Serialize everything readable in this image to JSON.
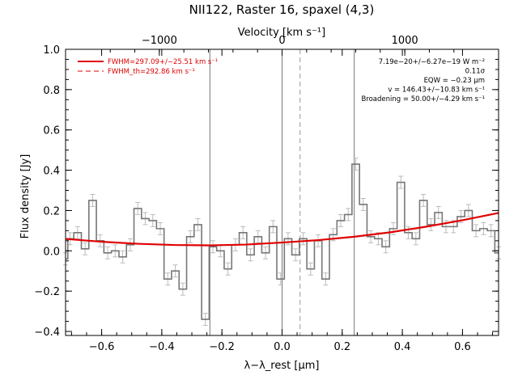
{
  "chart_data": {
    "type": "line",
    "title": "NII122, Raster 16, spaxel (4,3)",
    "top_axis_label": "Velocity [km s⁻¹]",
    "top_ticks": [
      -1000,
      0,
      1000
    ],
    "xlabel": "λ−λ_rest [μm]",
    "ylabel": "Flux density [Jy]",
    "xlim": [
      -0.72,
      0.72
    ],
    "ylim": [
      -0.42,
      1.0
    ],
    "x_ticks": [
      -0.6,
      -0.4,
      -0.2,
      0.0,
      0.2,
      0.4,
      0.6
    ],
    "y_ticks": [
      -0.4,
      -0.2,
      0.0,
      0.2,
      0.4,
      0.6,
      0.8,
      1.0
    ],
    "velocity_per_micron": 2450,
    "legend": {
      "placement": "top-left",
      "entries": [
        {
          "label": "FWHM=297.09+/−25.51 km s⁻¹",
          "style": "solid",
          "color": "#e00000"
        },
        {
          "label": "FWHM_th=292.86 km s⁻¹",
          "style": "dashed",
          "color": "#e00000"
        }
      ]
    },
    "annotations": [
      "7.19e−20+/−6.27e−19 W m⁻²",
      "0.11σ",
      "EQW = −0.23 μm",
      "v = 146.43+/−10.83 km s⁻¹",
      "Broadening = 50.00+/−4.29 km s⁻¹"
    ],
    "vertical_lines": [
      {
        "x": -0.24,
        "style": "solid",
        "color": "#777777"
      },
      {
        "x": 0.0,
        "style": "solid",
        "color": "#777777"
      },
      {
        "x": 0.06,
        "style": "dashed",
        "color": "#999999"
      },
      {
        "x": 0.24,
        "style": "solid",
        "color": "#777777"
      }
    ],
    "series": [
      {
        "role": "spectrum",
        "style": "steps",
        "color": "#777777",
        "error_color": "#bbbbbb",
        "x": [
          -0.72,
          -0.705,
          -0.68,
          -0.655,
          -0.63,
          -0.605,
          -0.58,
          -0.555,
          -0.53,
          -0.505,
          -0.48,
          -0.455,
          -0.43,
          -0.405,
          -0.38,
          -0.355,
          -0.33,
          -0.305,
          -0.28,
          -0.255,
          -0.23,
          -0.205,
          -0.18,
          -0.155,
          -0.13,
          -0.105,
          -0.08,
          -0.055,
          -0.03,
          -0.005,
          0.02,
          0.045,
          0.07,
          0.095,
          0.12,
          0.145,
          0.17,
          0.195,
          0.22,
          0.245,
          0.27,
          0.295,
          0.32,
          0.345,
          0.37,
          0.395,
          0.42,
          0.445,
          0.47,
          0.495,
          0.52,
          0.545,
          0.57,
          0.595,
          0.62,
          0.645,
          0.67,
          0.695,
          0.72
        ],
        "y": [
          -0.04,
          0.06,
          0.09,
          0.01,
          0.25,
          0.05,
          -0.01,
          0.0,
          -0.03,
          0.03,
          0.21,
          0.16,
          0.15,
          0.11,
          -0.14,
          -0.1,
          -0.19,
          0.07,
          0.13,
          -0.34,
          0.02,
          0.0,
          -0.09,
          0.03,
          0.09,
          -0.02,
          0.07,
          -0.01,
          0.12,
          -0.14,
          0.06,
          -0.02,
          0.06,
          -0.09,
          0.05,
          -0.14,
          0.08,
          0.15,
          0.18,
          0.43,
          0.23,
          0.07,
          0.06,
          0.02,
          0.11,
          0.34,
          0.09,
          0.06,
          0.25,
          0.13,
          0.19,
          0.12,
          0.12,
          0.17,
          0.2,
          0.1,
          0.11,
          0.1,
          -0.01
        ],
        "error": 0.03
      },
      {
        "role": "fit",
        "style": "line",
        "color": "#e00000",
        "x": [
          -0.72,
          -0.6,
          -0.48,
          -0.36,
          -0.24,
          -0.12,
          0.0,
          0.12,
          0.24,
          0.36,
          0.48,
          0.6,
          0.72
        ],
        "y": [
          0.059,
          0.045,
          0.035,
          0.029,
          0.027,
          0.031,
          0.041,
          0.053,
          0.07,
          0.092,
          0.12,
          0.152,
          0.188
        ]
      }
    ]
  }
}
